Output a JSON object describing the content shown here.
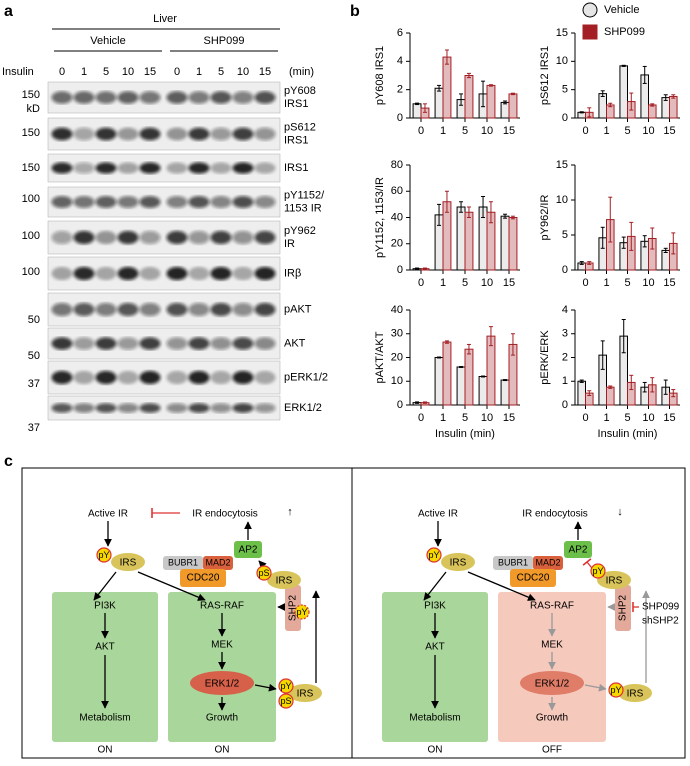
{
  "panels": [
    "a",
    "b",
    "c"
  ],
  "blot": {
    "tissue": "Liver",
    "groups": [
      "Vehicle",
      "SHP099"
    ],
    "insulin_label": "Insulin",
    "times": [
      "0",
      "1",
      "5",
      "10",
      "15"
    ],
    "unit": "(min)",
    "rows": [
      {
        "label": [
          "pY608",
          "IRS1"
        ]
      },
      {
        "label": [
          "pS612",
          "IRS1"
        ]
      },
      {
        "label": [
          "IRS1"
        ]
      },
      {
        "label": [
          "pY1152/",
          "1153 IR"
        ]
      },
      {
        "label": [
          "pY962",
          "IR"
        ]
      },
      {
        "label": [
          "IRβ"
        ]
      },
      {
        "label": [
          "pAKT"
        ]
      },
      {
        "label": [
          "AKT"
        ]
      },
      {
        "label": [
          "pERK1/2"
        ]
      },
      {
        "label": [
          "ERK1/2"
        ]
      }
    ],
    "mw": [
      "150",
      "kD",
      "150",
      "150",
      "100",
      "100",
      "100",
      "50",
      "50",
      "37",
      "37"
    ]
  },
  "chart_data": [
    {
      "type": "bar",
      "ylabel": "pY608 IRS1",
      "categories": [
        "0",
        "1",
        "5",
        "10",
        "15"
      ],
      "ylim": [
        0,
        6
      ],
      "yticks": [
        0,
        2,
        4,
        6
      ],
      "series": [
        {
          "name": "Vehicle",
          "marker": "circle",
          "color": "#bdbdbd",
          "edge": "#000000",
          "values": [
            1.0,
            2.1,
            1.3,
            1.7,
            1.1
          ],
          "errors": [
            0.05,
            0.2,
            0.4,
            0.9,
            0.1
          ]
        },
        {
          "name": "SHP099",
          "marker": "square",
          "color": "#a31f24",
          "edge": "#a31f24",
          "values": [
            0.7,
            4.3,
            3.0,
            2.3,
            1.7
          ],
          "errors": [
            0.3,
            0.5,
            0.15,
            0.05,
            0.05
          ]
        }
      ]
    },
    {
      "type": "bar",
      "ylabel": "pS612 IRS1",
      "categories": [
        "0",
        "1",
        "5",
        "10",
        "15"
      ],
      "ylim": [
        0,
        15
      ],
      "yticks": [
        0,
        5,
        10,
        15
      ],
      "series": [
        {
          "name": "Vehicle",
          "marker": "circle",
          "color": "#bdbdbd",
          "edge": "#000000",
          "values": [
            1.0,
            4.3,
            9.2,
            7.6,
            3.6
          ],
          "errors": [
            0.1,
            0.5,
            0.1,
            1.5,
            0.5
          ]
        },
        {
          "name": "SHP099",
          "marker": "square",
          "color": "#a31f24",
          "edge": "#a31f24",
          "values": [
            1.0,
            2.3,
            2.9,
            2.3,
            3.8
          ],
          "errors": [
            0.8,
            0.3,
            1.5,
            0.2,
            0.3
          ]
        }
      ]
    },
    {
      "type": "bar",
      "ylabel": "pY1152, 1153/IR",
      "categories": [
        "0",
        "1",
        "5",
        "10",
        "15"
      ],
      "ylim": [
        0,
        80
      ],
      "yticks": [
        0,
        20,
        40,
        60,
        80
      ],
      "series": [
        {
          "name": "Vehicle",
          "marker": "circle",
          "color": "#bdbdbd",
          "edge": "#000000",
          "values": [
            1,
            42,
            48,
            48,
            41
          ],
          "errors": [
            0.5,
            8,
            4,
            8,
            1.5
          ]
        },
        {
          "name": "SHP099",
          "marker": "square",
          "color": "#a31f24",
          "edge": "#a31f24",
          "values": [
            1,
            52,
            44,
            44,
            40
          ],
          "errors": [
            0.5,
            8,
            4,
            8,
            1
          ]
        }
      ]
    },
    {
      "type": "bar",
      "ylabel": "pY962/IR",
      "categories": [
        "0",
        "1",
        "5",
        "10",
        "15"
      ],
      "ylim": [
        0,
        15
      ],
      "yticks": [
        0,
        5,
        10,
        15
      ],
      "series": [
        {
          "name": "Vehicle",
          "marker": "circle",
          "color": "#bdbdbd",
          "edge": "#000000",
          "values": [
            1,
            4.6,
            3.9,
            4.1,
            2.8
          ],
          "errors": [
            0.2,
            1.5,
            0.8,
            0.8,
            0.3
          ]
        },
        {
          "name": "SHP099",
          "marker": "square",
          "color": "#a31f24",
          "edge": "#a31f24",
          "values": [
            1,
            7.2,
            4.8,
            4.5,
            3.8
          ],
          "errors": [
            0.2,
            3.2,
            2,
            1.5,
            1.5
          ]
        }
      ]
    },
    {
      "type": "bar",
      "ylabel": "pAKT/AKT",
      "xlabel": "Insulin (min)",
      "categories": [
        "0",
        "1",
        "5",
        "10",
        "15"
      ],
      "ylim": [
        0,
        40
      ],
      "yticks": [
        0,
        10,
        20,
        30,
        40
      ],
      "series": [
        {
          "name": "Vehicle",
          "marker": "circle",
          "color": "#bdbdbd",
          "edge": "#000000",
          "values": [
            1,
            20,
            16,
            12,
            10.5
          ],
          "errors": [
            0.3,
            0.2,
            0.2,
            0.2,
            0.2
          ]
        },
        {
          "name": "SHP099",
          "marker": "square",
          "color": "#a31f24",
          "edge": "#a31f24",
          "values": [
            1,
            26.5,
            23.5,
            29,
            25.5
          ],
          "errors": [
            0.3,
            0.5,
            2,
            4,
            4.5
          ]
        }
      ]
    },
    {
      "type": "bar",
      "ylabel": "pERK/ERK",
      "xlabel": "Insulin (min)",
      "categories": [
        "0",
        "1",
        "5",
        "10",
        "15"
      ],
      "ylim": [
        0,
        4
      ],
      "yticks": [
        0,
        1,
        2,
        3,
        4
      ],
      "series": [
        {
          "name": "Vehicle",
          "marker": "circle",
          "color": "#bdbdbd",
          "edge": "#000000",
          "values": [
            1.0,
            2.1,
            2.9,
            0.75,
            0.75
          ],
          "errors": [
            0.05,
            0.6,
            0.7,
            0.2,
            0.3
          ]
        },
        {
          "name": "SHP099",
          "marker": "square",
          "color": "#a31f24",
          "edge": "#a31f24",
          "values": [
            0.5,
            0.75,
            0.95,
            0.85,
            0.5
          ],
          "errors": [
            0.1,
            0.05,
            0.3,
            0.3,
            0.15
          ]
        }
      ]
    }
  ],
  "diagram": {
    "left": {
      "active_ir": "Active IR",
      "endocytosis": "IR endocytosis",
      "trend": "↑",
      "py1": "pY",
      "irs1": "IRS",
      "ap2": "AP2",
      "bubr1": "BUBR1",
      "mad2": "MAD2",
      "cdc20": "CDC20",
      "ps2": "pS",
      "py2": "pY",
      "irs2": "IRS",
      "pi3k": "PI3K",
      "akt": "AKT",
      "metabolism": "Metabolism",
      "state1": "ON",
      "rasraf": "RAS-RAF",
      "mek": "MEK",
      "erk": "ERK1/2",
      "growth": "Growth",
      "state2": "ON",
      "shp2": "SHP2",
      "py3": "pY",
      "ps3": "pS",
      "irs3": "IRS"
    },
    "right": {
      "active_ir": "Active IR",
      "endocytosis": "IR endocytosis",
      "trend": "↓",
      "py1": "pY",
      "irs1": "IRS",
      "ap2": "AP2",
      "bubr1": "BUBR1",
      "mad2": "MAD2",
      "cdc20": "CDC20",
      "py2": "pY",
      "irs2": "IRS",
      "pi3k": "PI3K",
      "akt": "AKT",
      "metabolism": "Metabolism",
      "state1": "ON",
      "rasraf": "RAS-RAF",
      "mek": "MEK",
      "erk": "ERK1/2",
      "growth": "Growth",
      "state2": "OFF",
      "shp2": "SHP2",
      "py3": "pY",
      "irs3": "IRS",
      "shp099": "SHP099",
      "shshp2": "shSHP2"
    }
  }
}
